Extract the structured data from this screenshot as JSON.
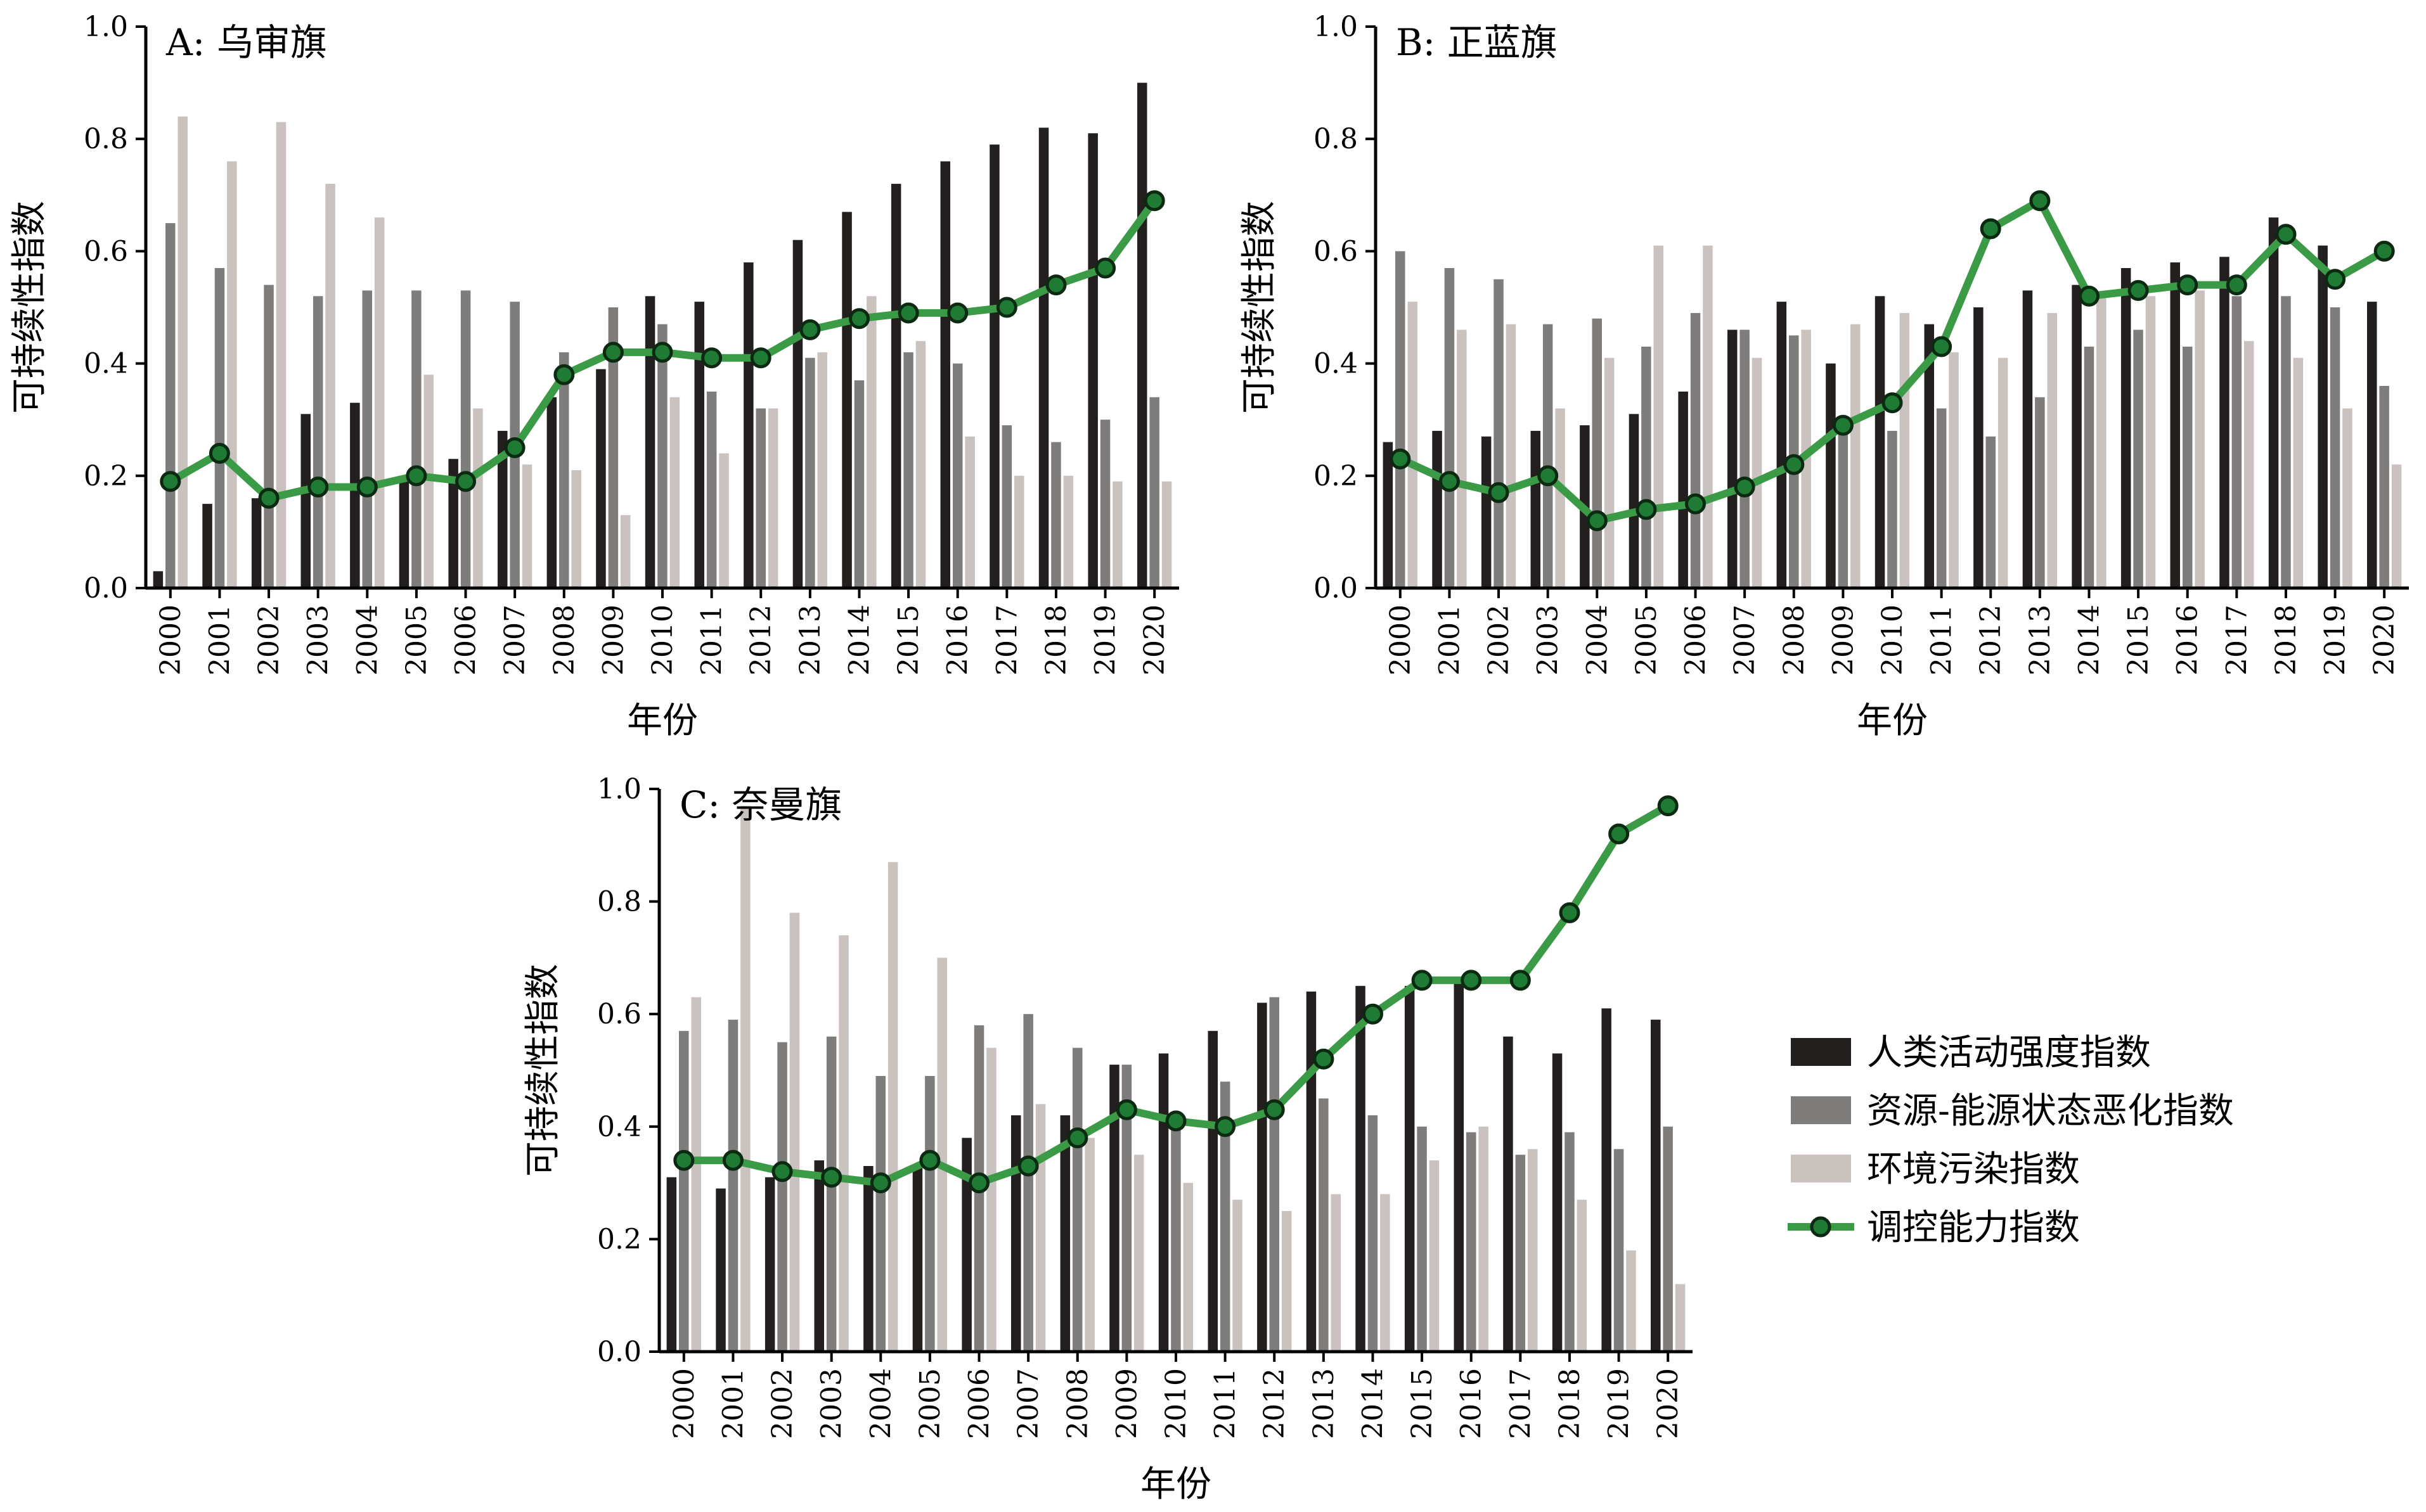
{
  "colors": {
    "human": "#231f1e",
    "resource": "#7f7d7c",
    "environment": "#c9c2bf",
    "control_line": "#3a9a45",
    "control_marker": "#1f7a34",
    "marker_edge": "#0c2a12"
  },
  "legend": {
    "items": [
      {
        "label": "人类活动强度指数",
        "kind": "bar",
        "color": "#231f1e"
      },
      {
        "label": "资源-能源状态恶化指数",
        "kind": "bar",
        "color": "#7f7d7c"
      },
      {
        "label": "环境污染指数",
        "kind": "bar",
        "color": "#c9c2bf"
      },
      {
        "label": "调控能力指数",
        "kind": "line",
        "color": "#3a9a45"
      }
    ]
  },
  "chart_data": [
    {
      "type": "bar",
      "title": "A: 乌审旗",
      "xlabel": "年份",
      "ylabel": "可持续性指数",
      "ylim": [
        0,
        1.0
      ],
      "yticks": [
        "0.0",
        "0.2",
        "0.4",
        "0.6",
        "0.8",
        "1.0"
      ],
      "categories": [
        "2000",
        "2001",
        "2002",
        "2003",
        "2004",
        "2005",
        "2006",
        "2007",
        "2008",
        "2009",
        "2010",
        "2011",
        "2012",
        "2013",
        "2014",
        "2015",
        "2016",
        "2017",
        "2018",
        "2019",
        "2020"
      ],
      "series": [
        {
          "name": "人类活动强度指数",
          "kind": "bar",
          "values": [
            0.03,
            0.15,
            0.16,
            0.31,
            0.33,
            0.19,
            0.23,
            0.28,
            0.34,
            0.39,
            0.52,
            0.51,
            0.58,
            0.62,
            0.67,
            0.72,
            0.76,
            0.79,
            0.82,
            0.81,
            0.9
          ]
        },
        {
          "name": "资源-能源状态恶化指数",
          "kind": "bar",
          "values": [
            0.65,
            0.57,
            0.54,
            0.52,
            0.53,
            0.53,
            0.53,
            0.51,
            0.42,
            0.5,
            0.47,
            0.35,
            0.32,
            0.41,
            0.37,
            0.42,
            0.4,
            0.29,
            0.26,
            0.3,
            0.34
          ]
        },
        {
          "name": "环境污染指数",
          "kind": "bar",
          "values": [
            0.84,
            0.76,
            0.83,
            0.72,
            0.66,
            0.38,
            0.32,
            0.22,
            0.21,
            0.13,
            0.34,
            0.24,
            0.32,
            0.42,
            0.52,
            0.44,
            0.27,
            0.2,
            0.2,
            0.19,
            0.19
          ]
        },
        {
          "name": "调控能力指数",
          "kind": "line",
          "values": [
            0.19,
            0.24,
            0.16,
            0.18,
            0.18,
            0.2,
            0.19,
            0.25,
            0.38,
            0.42,
            0.42,
            0.41,
            0.41,
            0.46,
            0.48,
            0.49,
            0.49,
            0.5,
            0.54,
            0.57,
            0.69
          ]
        }
      ]
    },
    {
      "type": "bar",
      "title": "B: 正蓝旗",
      "xlabel": "年份",
      "ylabel": "可持续性指数",
      "ylim": [
        0,
        1.0
      ],
      "yticks": [
        "0.0",
        "0.2",
        "0.4",
        "0.6",
        "0.8",
        "1.0"
      ],
      "categories": [
        "2000",
        "2001",
        "2002",
        "2003",
        "2004",
        "2005",
        "2006",
        "2007",
        "2008",
        "2009",
        "2010",
        "2011",
        "2012",
        "2013",
        "2014",
        "2015",
        "2016",
        "2017",
        "2018",
        "2019",
        "2020"
      ],
      "series": [
        {
          "name": "人类活动强度指数",
          "kind": "bar",
          "values": [
            0.26,
            0.28,
            0.27,
            0.28,
            0.29,
            0.31,
            0.35,
            0.46,
            0.51,
            0.4,
            0.52,
            0.47,
            0.5,
            0.53,
            0.54,
            0.57,
            0.58,
            0.59,
            0.66,
            0.61,
            0.51
          ]
        },
        {
          "name": "资源-能源状态恶化指数",
          "kind": "bar",
          "values": [
            0.6,
            0.57,
            0.55,
            0.47,
            0.48,
            0.43,
            0.49,
            0.46,
            0.45,
            0.29,
            0.28,
            0.32,
            0.27,
            0.34,
            0.43,
            0.46,
            0.43,
            0.52,
            0.52,
            0.5,
            0.36
          ]
        },
        {
          "name": "环境污染指数",
          "kind": "bar",
          "values": [
            0.51,
            0.46,
            0.47,
            0.32,
            0.41,
            0.61,
            0.61,
            0.41,
            0.46,
            0.47,
            0.49,
            0.42,
            0.41,
            0.49,
            0.52,
            0.52,
            0.53,
            0.44,
            0.41,
            0.32,
            0.22
          ]
        },
        {
          "name": "调控能力指数",
          "kind": "line",
          "values": [
            0.23,
            0.19,
            0.17,
            0.2,
            0.12,
            0.14,
            0.15,
            0.18,
            0.22,
            0.29,
            0.33,
            0.43,
            0.64,
            0.69,
            0.52,
            0.53,
            0.54,
            0.54,
            0.63,
            0.55,
            0.6
          ]
        }
      ]
    },
    {
      "type": "bar",
      "title": "C: 奈曼旗",
      "xlabel": "年份",
      "ylabel": "可持续性指数",
      "ylim": [
        0,
        1.0
      ],
      "yticks": [
        "0.0",
        "0.2",
        "0.4",
        "0.6",
        "0.8",
        "1.0"
      ],
      "categories": [
        "2000",
        "2001",
        "2002",
        "2003",
        "2004",
        "2005",
        "2006",
        "2007",
        "2008",
        "2009",
        "2010",
        "2011",
        "2012",
        "2013",
        "2014",
        "2015",
        "2016",
        "2017",
        "2018",
        "2019",
        "2020"
      ],
      "series": [
        {
          "name": "人类活动强度指数",
          "kind": "bar",
          "values": [
            0.31,
            0.29,
            0.31,
            0.34,
            0.33,
            0.33,
            0.38,
            0.42,
            0.42,
            0.51,
            0.53,
            0.57,
            0.62,
            0.64,
            0.65,
            0.65,
            0.66,
            0.56,
            0.53,
            0.61,
            0.59
          ]
        },
        {
          "name": "资源-能源状态恶化指数",
          "kind": "bar",
          "values": [
            0.57,
            0.59,
            0.55,
            0.56,
            0.49,
            0.49,
            0.58,
            0.6,
            0.54,
            0.51,
            0.42,
            0.48,
            0.63,
            0.45,
            0.42,
            0.4,
            0.39,
            0.35,
            0.39,
            0.36,
            0.4
          ]
        },
        {
          "name": "环境污染指数",
          "kind": "bar",
          "values": [
            0.63,
            0.97,
            0.78,
            0.74,
            0.87,
            0.7,
            0.54,
            0.44,
            0.38,
            0.35,
            0.3,
            0.27,
            0.25,
            0.28,
            0.28,
            0.34,
            0.4,
            0.36,
            0.27,
            0.18,
            0.12
          ]
        },
        {
          "name": "调控能力指数",
          "kind": "line",
          "values": [
            0.34,
            0.34,
            0.32,
            0.31,
            0.3,
            0.34,
            0.3,
            0.33,
            0.38,
            0.43,
            0.41,
            0.4,
            0.43,
            0.52,
            0.6,
            0.66,
            0.66,
            0.66,
            0.78,
            0.92,
            0.97
          ]
        }
      ]
    }
  ]
}
